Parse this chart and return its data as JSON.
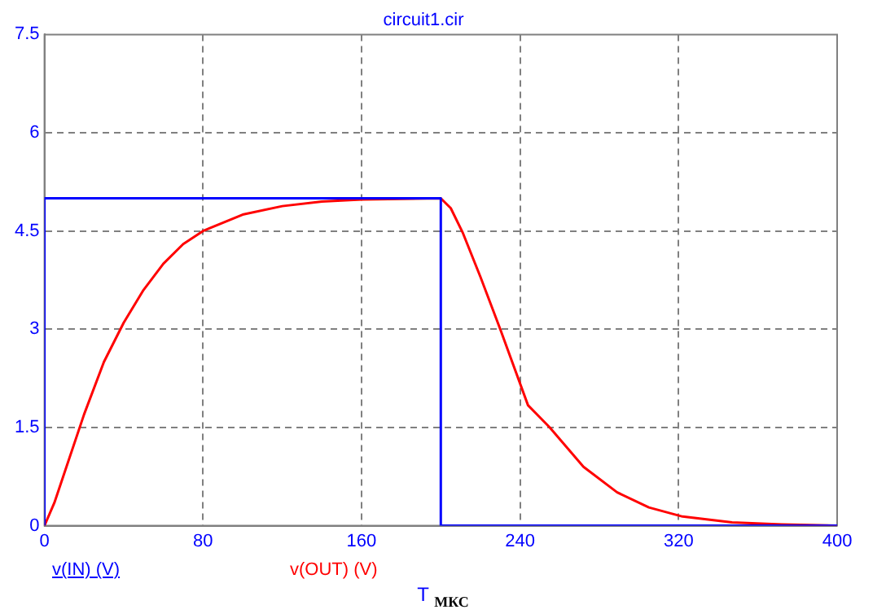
{
  "chart_data": {
    "type": "line",
    "title": "circuit1.cir",
    "xlabel": "T $_{МКС}$",
    "xlim": [
      0,
      400
    ],
    "xticks": [
      0,
      80,
      160,
      240,
      320,
      400
    ],
    "ylim": [
      0,
      7.5
    ],
    "yticks": [
      0,
      1.5,
      3,
      4.5,
      6,
      7.5
    ],
    "grid": true,
    "legend": "bottom",
    "marker": "none",
    "line_style": "solid",
    "series": [
      {
        "name": "v(IN) (V)",
        "color": "#0000ff",
        "x": [
          0,
          0,
          200,
          200,
          400
        ],
        "values": [
          0,
          5,
          5,
          0,
          0
        ]
      },
      {
        "name": "v(OUT) (V)",
        "color": "#ff0000",
        "x": [
          0,
          5,
          10,
          20,
          30,
          40,
          50,
          60,
          70,
          80,
          100,
          120,
          140,
          160,
          200,
          205,
          211,
          220,
          230,
          244,
          255,
          272,
          289,
          305,
          322,
          347,
          372,
          400
        ],
        "values": [
          0,
          0.35,
          0.8,
          1.7,
          2.5,
          3.1,
          3.6,
          4.0,
          4.3,
          4.5,
          4.75,
          4.88,
          4.95,
          4.98,
          5.0,
          4.85,
          4.48,
          3.8,
          3.0,
          1.84,
          1.5,
          0.9,
          0.51,
          0.28,
          0.14,
          0.05,
          0.02,
          0
        ]
      }
    ]
  }
}
